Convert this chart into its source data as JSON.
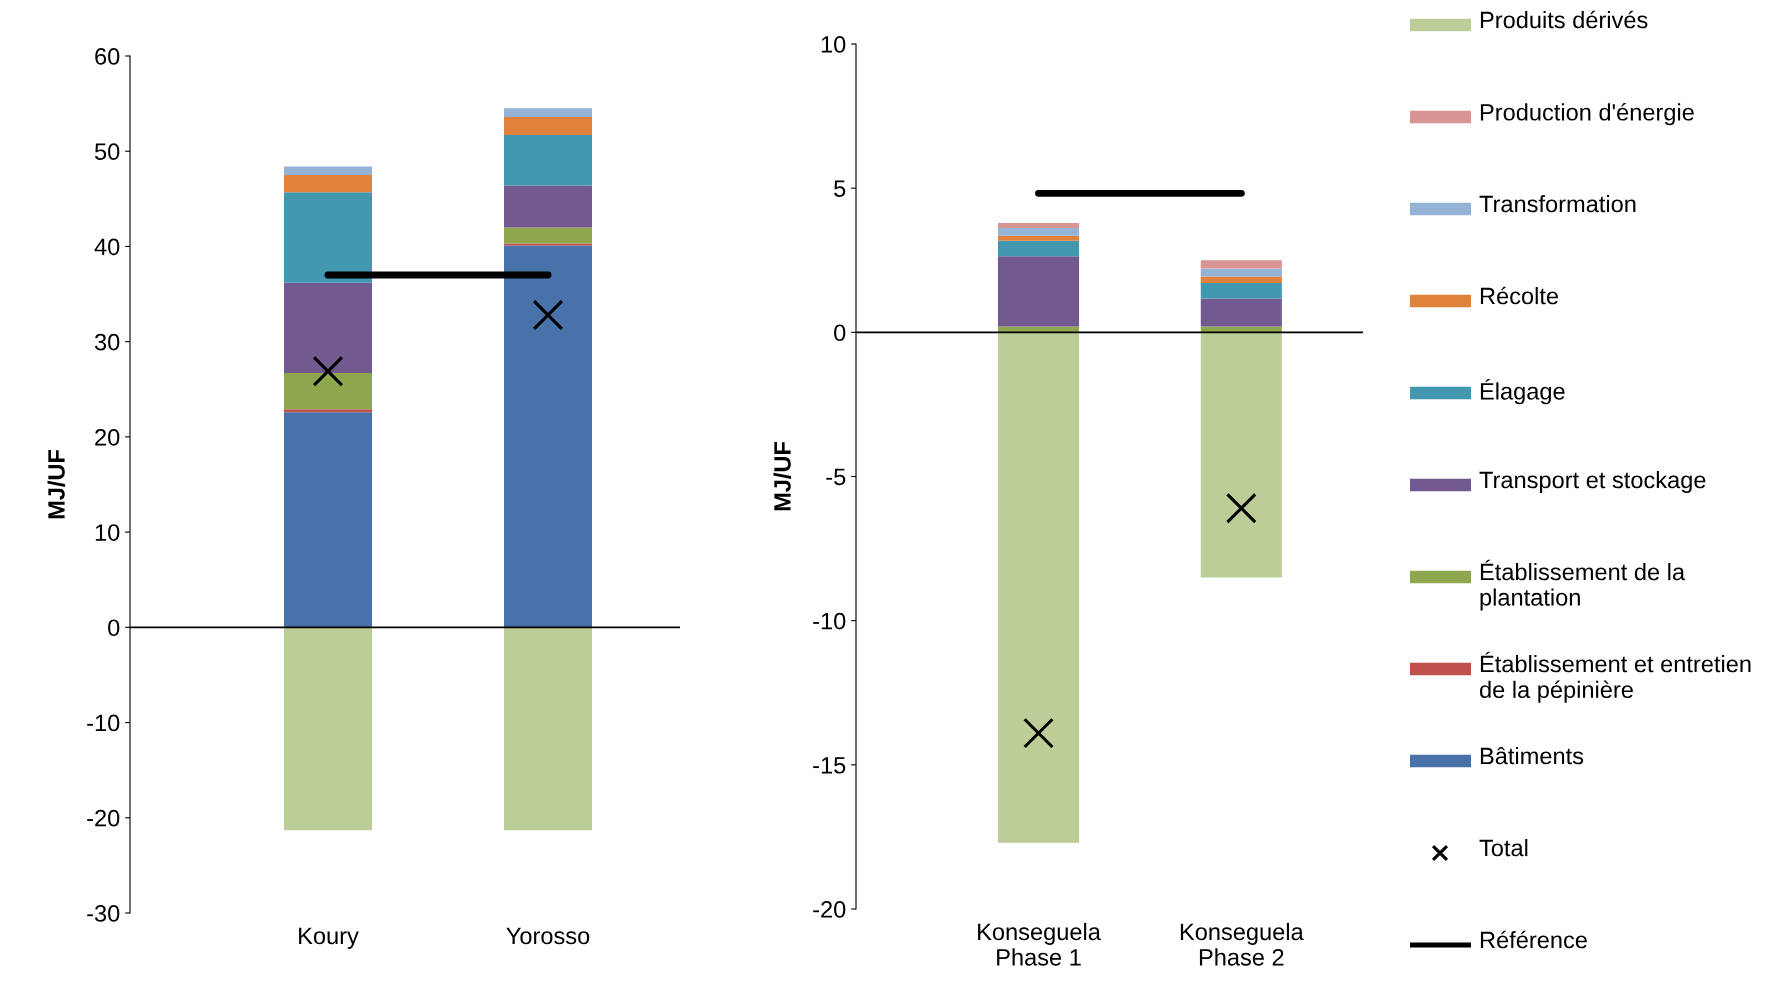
{
  "chart_data": [
    {
      "type": "bar",
      "stacked": true,
      "categories": [
        "Koury",
        "Yorosso"
      ],
      "ylabel": "MJ/UF",
      "ylim": [
        -30,
        60
      ],
      "yticks": [
        -30,
        -20,
        -10,
        0,
        10,
        20,
        30,
        40,
        50,
        60
      ],
      "grid": false,
      "legend": false,
      "series": [
        {
          "color": "#4872a9",
          "values": [
            22.6,
            40.1
          ]
        },
        {
          "color": "#c0504d",
          "values": [
            0.3,
            0.2
          ]
        },
        {
          "color": "#8ea64e",
          "values": [
            3.8,
            1.7
          ]
        },
        {
          "color": "#725a90",
          "values": [
            9.5,
            4.4
          ]
        },
        {
          "color": "#4198af",
          "values": [
            9.5,
            5.3
          ]
        },
        {
          "color": "#e0823c",
          "values": [
            1.8,
            1.9
          ]
        },
        {
          "color": "#95b3d7",
          "values": [
            0.9,
            0.9
          ]
        },
        {
          "color": "#bccd97",
          "values": [
            -21.3,
            -21.3
          ]
        },
        {
          "type": "scatter",
          "marker": "cross",
          "color": "#000000",
          "values": [
            26.9,
            32.8
          ]
        },
        {
          "type": "line",
          "color": "#000000",
          "values": [
            37.0,
            37.0
          ]
        }
      ]
    },
    {
      "type": "bar",
      "stacked": true,
      "categories": [
        "Konseguela\nPhase 1",
        "Konseguela\nPhase 2"
      ],
      "ylabel": "MJ/UF",
      "ylim": [
        -20,
        10
      ],
      "yticks": [
        -20,
        -15,
        -10,
        -5,
        0,
        5,
        10
      ],
      "grid": false,
      "legend": "right",
      "series": [
        {
          "name": "Bâtiments",
          "color": "#4872a9",
          "values": [
            0,
            0
          ]
        },
        {
          "name": "Établissement et entretien de la pépinière",
          "color": "#c0504d",
          "values": [
            0,
            0
          ]
        },
        {
          "name": "Établissement de la plantation",
          "color": "#8ea64e",
          "values": [
            0.2,
            0.2
          ]
        },
        {
          "name": "Transport et stockage",
          "color": "#725a90",
          "values": [
            2.44,
            0.97
          ]
        },
        {
          "name": "Élagage",
          "color": "#4198af",
          "values": [
            0.54,
            0.54
          ]
        },
        {
          "name": "Récolte",
          "color": "#e0823c",
          "values": [
            0.17,
            0.23
          ]
        },
        {
          "name": "Transformation",
          "color": "#95b3d7",
          "values": [
            0.27,
            0.27
          ]
        },
        {
          "name": "Production d'énergie",
          "color": "#d99594",
          "values": [
            0.17,
            0.29
          ]
        },
        {
          "name": "Produits dérivés",
          "color": "#bccd97",
          "values": [
            -17.7,
            -8.5
          ]
        },
        {
          "name": "Total",
          "type": "scatter",
          "marker": "cross",
          "color": "#000000",
          "values": [
            -13.9,
            -6.1
          ]
        },
        {
          "name": "Référence",
          "type": "line",
          "color": "#000000",
          "values": [
            4.82,
            4.82
          ]
        }
      ]
    }
  ]
}
